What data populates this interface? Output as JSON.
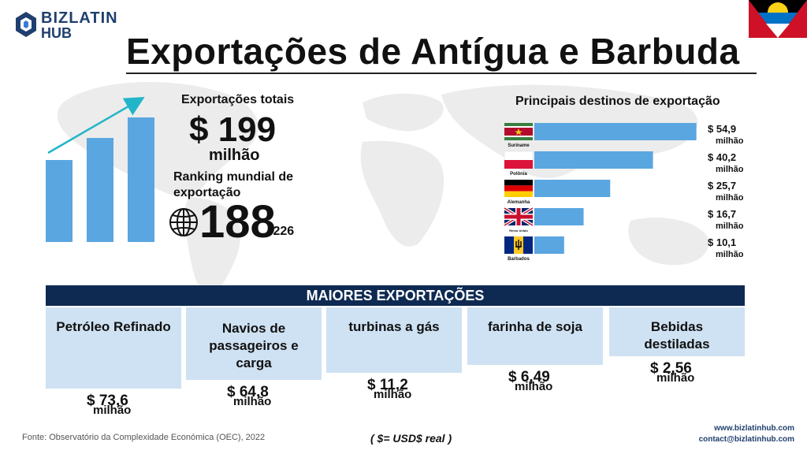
{
  "logo": {
    "line1": "BIZLATIN",
    "line2": "HUB"
  },
  "title": "Exportações de Antígua e Barbuda",
  "totals": {
    "label": "Exportações totais",
    "value": "$ 199",
    "unit": "milhão",
    "rank_label": "Ranking mundial de exportação",
    "rank": "188",
    "rank_total": "/226"
  },
  "destinations_title": "Principais destinos de exportação",
  "chart_data": {
    "type": "bar",
    "orientation": "horizontal",
    "title": "Principais destinos de exportação",
    "categories": [
      "Suriname",
      "Polônia",
      "Alemanha",
      "Reino Unido",
      "Barbados"
    ],
    "values": [
      54.9,
      40.2,
      25.7,
      16.7,
      10.1
    ],
    "value_labels": [
      "$ 54,9",
      "$ 40,2",
      "$ 25,7",
      "$ 16,7",
      "$ 10,1"
    ],
    "unit_label": "milhão",
    "xlim": [
      0,
      55
    ],
    "color": "#5aa6e0"
  },
  "band_title": "MAIORES EXPORTAÇÕES",
  "products": [
    {
      "name": "Petróleo Refinado",
      "value": "$ 73,6",
      "unit": "milhão"
    },
    {
      "name": "Navios de passageiros e carga",
      "value": "$ 64,8",
      "unit": "milhão"
    },
    {
      "name": "turbinas a gás",
      "value": "$ 11,2",
      "unit": "milhão"
    },
    {
      "name": "farinha de soja",
      "value": "$ 6,49",
      "unit": "milhão"
    },
    {
      "name": "Bebidas destiladas",
      "value": "$ 2,56",
      "unit": "milhão"
    }
  ],
  "footer": {
    "source": "Fonte: Observatório da Complexidade Económica (OEC), 2022",
    "currency": "( $= USD$ real )",
    "website": "www.bizlatinhub.com",
    "email": "contact@bizlatinhub.com"
  },
  "colors": {
    "navy": "#0e2a52",
    "bar": "#5aa6e0",
    "card": "#cfe2f3",
    "arrow": "#22b5c9"
  }
}
